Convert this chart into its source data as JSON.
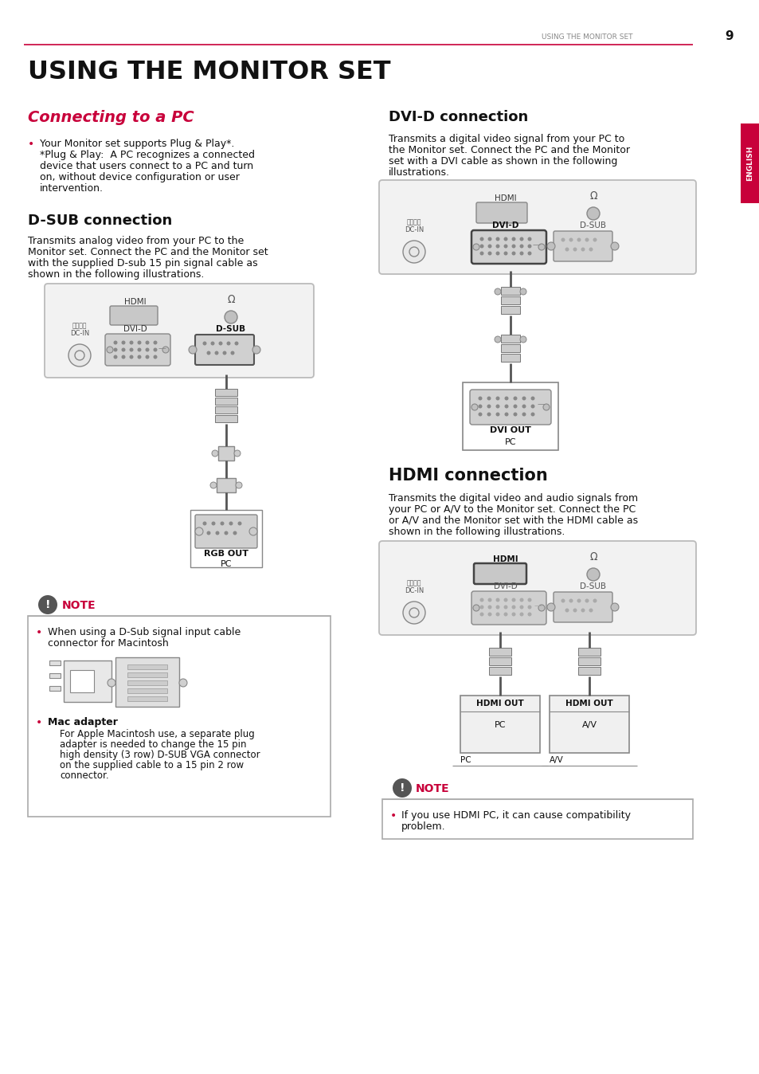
{
  "page_number": "9",
  "header_text": "USING THE MONITOR SET",
  "header_line_color": "#c8003a",
  "main_title": "USING THE MONITOR SET",
  "side_tab_text": "ENGLISH",
  "side_tab_color": "#c8003a",
  "section1_title": "Connecting to a PC",
  "section1_title_color": "#c8003a",
  "bullet_color": "#c8003a",
  "section1_bullet1_line1": "Your Monitor set supports Plug & Play*.",
  "section1_bullet1_line2": "*Plug & Play:  A PC recognizes a connected",
  "section1_bullet1_line3": "device that users connect to a PC and turn",
  "section1_bullet1_line4": "on, without device configuration or user",
  "section1_bullet1_line5": "intervention.",
  "dsub_title": "D-SUB connection",
  "dsub_body_line1": "Transmits analog video from your PC to the",
  "dsub_body_line2": "Monitor set. Connect the PC and the Monitor set",
  "dsub_body_line3": "with the supplied D-sub 15 pin signal cable as",
  "dsub_body_line4": "shown in the following illustrations.",
  "dvi_title": "DVI-D connection",
  "dvi_body_line1": "Transmits a digital video signal from your PC to",
  "dvi_body_line2": "the Monitor set. Connect the PC and the Monitor",
  "dvi_body_line3": "set with a DVI cable as shown in the following",
  "dvi_body_line4": "illustrations.",
  "hdmi_title": "HDMI connection",
  "hdmi_body_line1": "Transmits the digital video and audio signals from",
  "hdmi_body_line2": "your PC or A/V to the Monitor set. Connect the PC",
  "hdmi_body_line3": "or A/V and the Monitor set with the HDMI cable as",
  "hdmi_body_line4": "shown in the following illustrations.",
  "note1_line1": "When using a D-Sub signal input cable",
  "note1_line2": "connector for Macintosh",
  "note1_mac_title": "Mac adapter",
  "note1_mac_line1": "For Apple Macintosh use, a separate plug",
  "note1_mac_line2": "adapter is needed to change the 15 pin",
  "note1_mac_line3": "high density (3 row) D-SUB VGA connector",
  "note1_mac_line4": "on the supplied cable to a 15 pin 2 row",
  "note1_mac_line5": "connector.",
  "note2_line1": "If you use HDMI PC, it can cause compatibility",
  "note2_line2": "problem.",
  "bg": "#ffffff",
  "dark": "#1a1a1a",
  "gray": "#666666",
  "lgray": "#aaaaaa",
  "panel_bg": "#f2f2f2",
  "panel_border": "#bbbbbb",
  "connector_fill": "#d4d4d4",
  "connector_border": "#888888"
}
